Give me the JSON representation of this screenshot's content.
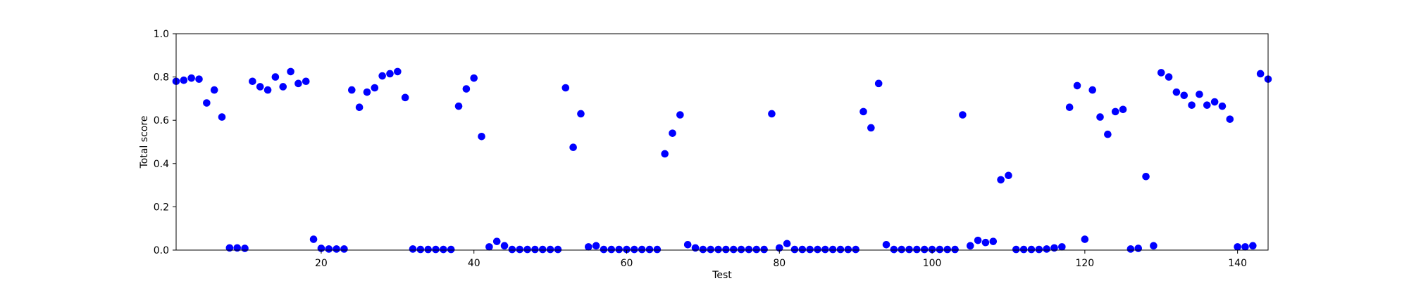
{
  "chart_data": {
    "type": "scatter",
    "xlabel": "Test",
    "ylabel": "Total score",
    "xlim": [
      1,
      144
    ],
    "ylim": [
      0,
      1
    ],
    "x_ticks": [
      20,
      40,
      60,
      80,
      100,
      120,
      140
    ],
    "y_ticks": [
      0.0,
      0.2,
      0.4,
      0.6,
      0.8,
      1.0
    ],
    "grid": false,
    "marker_color": "#0000ff",
    "series": [
      {
        "x": [
          1,
          2,
          3,
          4,
          5,
          6,
          7,
          8,
          9,
          10,
          11,
          12,
          13,
          14,
          15,
          16,
          17,
          18,
          19,
          20,
          21,
          22,
          23,
          24,
          25,
          26,
          27,
          28,
          29,
          30,
          31,
          32,
          33,
          34,
          35,
          36,
          37,
          38,
          39,
          40,
          41,
          42,
          43,
          44,
          45,
          46,
          47,
          48,
          49,
          50,
          51,
          52,
          53,
          54,
          55,
          56,
          57,
          58,
          59,
          60,
          61,
          62,
          63,
          64,
          65,
          66,
          67,
          68,
          69,
          70,
          71,
          72,
          73,
          74,
          75,
          76,
          77,
          78,
          79,
          80,
          81,
          82,
          83,
          84,
          85,
          86,
          87,
          88,
          89,
          90,
          91,
          92,
          93,
          94,
          95,
          96,
          97,
          98,
          99,
          100,
          101,
          102,
          103,
          104,
          105,
          106,
          107,
          108,
          109,
          110,
          111,
          112,
          113,
          114,
          115,
          116,
          117,
          118,
          119,
          120,
          121,
          122,
          123,
          124,
          125,
          126,
          127,
          128,
          129,
          130,
          131,
          132,
          133,
          134,
          135,
          136,
          137,
          138,
          139,
          140,
          141,
          142,
          143,
          144
        ],
        "y": [
          0.78,
          0.785,
          0.795,
          0.79,
          0.68,
          0.74,
          0.615,
          0.01,
          0.01,
          0.008,
          0.78,
          0.755,
          0.74,
          0.8,
          0.755,
          0.825,
          0.77,
          0.78,
          0.05,
          0.008,
          0.005,
          0.005,
          0.005,
          0.74,
          0.66,
          0.73,
          0.75,
          0.805,
          0.815,
          0.825,
          0.705,
          0.005,
          0.003,
          0.003,
          0.003,
          0.003,
          0.003,
          0.665,
          0.745,
          0.795,
          0.525,
          0.015,
          0.04,
          0.02,
          0.003,
          0.003,
          0.003,
          0.003,
          0.003,
          0.003,
          0.003,
          0.75,
          0.475,
          0.63,
          0.015,
          0.02,
          0.003,
          0.003,
          0.003,
          0.003,
          0.003,
          0.003,
          0.003,
          0.003,
          0.445,
          0.54,
          0.625,
          0.025,
          0.01,
          0.003,
          0.003,
          0.003,
          0.003,
          0.003,
          0.003,
          0.003,
          0.003,
          0.003,
          0.63,
          0.01,
          0.03,
          0.003,
          0.003,
          0.003,
          0.003,
          0.003,
          0.003,
          0.003,
          0.003,
          0.003,
          0.64,
          0.565,
          0.77,
          0.025,
          0.003,
          0.003,
          0.003,
          0.003,
          0.003,
          0.003,
          0.003,
          0.003,
          0.003,
          0.625,
          0.02,
          0.045,
          0.035,
          0.04,
          0.325,
          0.345,
          0.003,
          0.003,
          0.003,
          0.003,
          0.005,
          0.01,
          0.015,
          0.66,
          0.76,
          0.05,
          0.74,
          0.615,
          0.535,
          0.64,
          0.65,
          0.005,
          0.008,
          0.34,
          0.02,
          0.82,
          0.8,
          0.73,
          0.715,
          0.67,
          0.72,
          0.67,
          0.685,
          0.665,
          0.605,
          0.015,
          0.015,
          0.02,
          0.815,
          0.79
        ]
      }
    ]
  }
}
